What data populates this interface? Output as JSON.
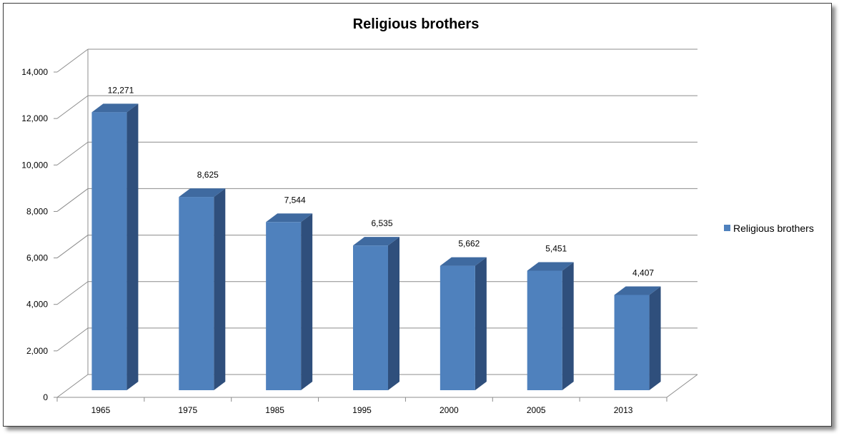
{
  "chart_data": {
    "type": "bar",
    "title": "Religious brothers",
    "xlabel": "",
    "ylabel": "",
    "categories": [
      "1965",
      "1975",
      "1985",
      "1995",
      "2000",
      "2005",
      "2013"
    ],
    "series": [
      {
        "name": "Religious brothers",
        "values": [
          12271,
          8625,
          7544,
          6535,
          5662,
          5451,
          4407
        ],
        "data_labels": [
          "12,271",
          "8,625",
          "7,544",
          "6,535",
          "5,662",
          "5,451",
          "4,407"
        ]
      }
    ],
    "ylim": [
      0,
      14000
    ],
    "yticks": [
      0,
      2000,
      4000,
      6000,
      8000,
      10000,
      12000,
      14000
    ],
    "ytick_labels": [
      "0",
      "2,000",
      "4,000",
      "6,000",
      "8,000",
      "10,000",
      "12,000",
      "14,000"
    ],
    "grid": true,
    "legend_position": "right",
    "style": "3d-column",
    "colors": {
      "bar_front": "#4f81bd",
      "bar_top": "#3f6aa0",
      "bar_side": "#2f4f7c",
      "grid": "#8c8c8c"
    }
  }
}
